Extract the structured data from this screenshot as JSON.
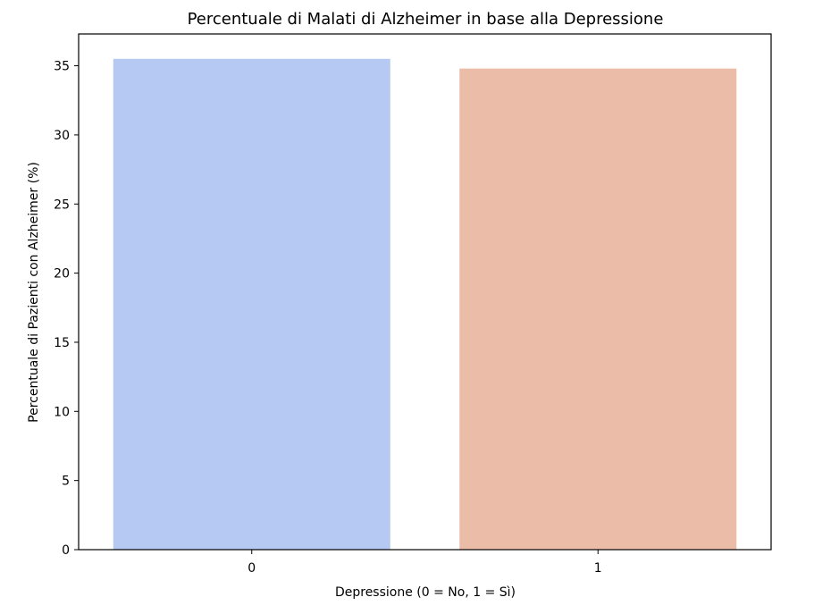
{
  "chart_data": {
    "type": "bar",
    "title": "Percentuale di Malati di Alzheimer in base alla Depressione",
    "xlabel": "Depressione (0 = No, 1 = Sì)",
    "ylabel": "Percentuale di Pazienti con Alzheimer (%)",
    "categories": [
      "0",
      "1"
    ],
    "values": [
      35.5,
      34.8
    ],
    "colors": [
      "#b5c9f2",
      "#ebbca8"
    ],
    "ylim": [
      0,
      37.3
    ],
    "yticks": [
      0,
      5,
      10,
      15,
      20,
      25,
      30,
      35
    ],
    "grid": false
  }
}
